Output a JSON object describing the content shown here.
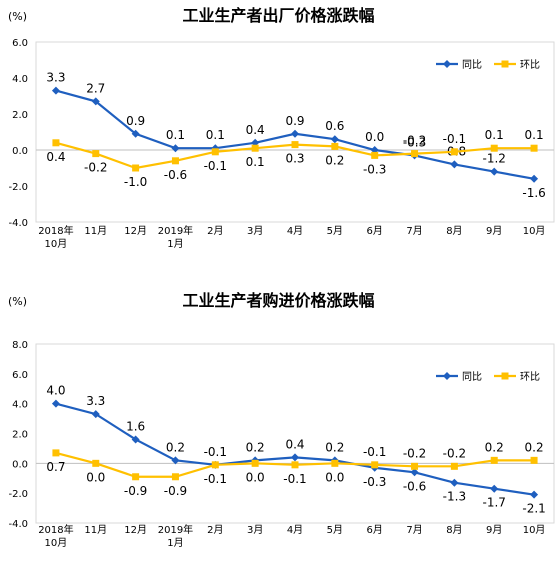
{
  "chart_data": [
    {
      "type": "line",
      "title": "工业生产者出厂价格涨跌幅",
      "ylabel": "(%)",
      "ylim": [
        -4.0,
        6.0
      ],
      "yticks": [
        "6.0",
        "4.0",
        "2.0",
        "0.0",
        "-2.0",
        "-4.0"
      ],
      "ytick_values": [
        6,
        4,
        2,
        0,
        -2,
        -4
      ],
      "categories": [
        [
          "2018年",
          "10月"
        ],
        [
          "11月"
        ],
        [
          "12月"
        ],
        [
          "2019年",
          "1月"
        ],
        [
          "2月"
        ],
        [
          "3月"
        ],
        [
          "4月"
        ],
        [
          "5月"
        ],
        [
          "6月"
        ],
        [
          "7月"
        ],
        [
          "8月"
        ],
        [
          "9月"
        ],
        [
          "10月"
        ]
      ],
      "legend": "top-right",
      "grid": false,
      "series": [
        {
          "name": "同比",
          "color": "#1F5FBF",
          "marker": "diamond",
          "values": [
            3.3,
            2.7,
            0.9,
            0.1,
            0.1,
            0.4,
            0.9,
            0.6,
            0.0,
            -0.3,
            -0.8,
            -1.2,
            -1.6
          ],
          "labels": [
            "3.3",
            "2.7",
            "0.9",
            "0.1",
            "0.1",
            "0.4",
            "0.9",
            "0.6",
            "0.0",
            "-0.3",
            "-0.8",
            "-1.2",
            "-1.6"
          ]
        },
        {
          "name": "环比",
          "color": "#FFC000",
          "marker": "square",
          "values": [
            0.4,
            -0.2,
            -1.0,
            -0.6,
            -0.1,
            0.1,
            0.3,
            0.2,
            -0.3,
            -0.2,
            -0.1,
            0.1,
            0.1
          ],
          "labels": [
            "0.4",
            "-0.2",
            "-1.0",
            "-0.6",
            "-0.1",
            "0.1",
            "0.3",
            "0.2",
            "-0.3",
            "-0.2",
            "-0.1",
            "0.1",
            "0.1"
          ]
        }
      ]
    },
    {
      "type": "line",
      "title": "工业生产者购进价格涨跌幅",
      "ylabel": "(%)",
      "ylim": [
        -4.0,
        8.0
      ],
      "yticks": [
        "8.0",
        "6.0",
        "4.0",
        "2.0",
        "0.0",
        "-2.0",
        "-4.0"
      ],
      "ytick_values": [
        8,
        6,
        4,
        2,
        0,
        -2,
        -4
      ],
      "categories": [
        [
          "2018年",
          "10月"
        ],
        [
          "11月"
        ],
        [
          "12月"
        ],
        [
          "2019年",
          "1月"
        ],
        [
          "2月"
        ],
        [
          "3月"
        ],
        [
          "4月"
        ],
        [
          "5月"
        ],
        [
          "6月"
        ],
        [
          "7月"
        ],
        [
          "8月"
        ],
        [
          "9月"
        ],
        [
          "10月"
        ]
      ],
      "legend": "top-right",
      "grid": false,
      "series": [
        {
          "name": "同比",
          "color": "#1F5FBF",
          "marker": "diamond",
          "values": [
            4.0,
            3.3,
            1.6,
            0.2,
            -0.1,
            0.2,
            0.4,
            0.2,
            -0.3,
            -0.6,
            -1.3,
            -1.7,
            -2.1
          ],
          "labels": [
            "4.0",
            "3.3",
            "1.6",
            "0.2",
            "-0.1",
            "0.2",
            "0.4",
            "0.2",
            "-0.3",
            "-0.6",
            "-1.3",
            "-1.7",
            "-2.1"
          ]
        },
        {
          "name": "环比",
          "color": "#FFC000",
          "marker": "square",
          "values": [
            0.7,
            0.0,
            -0.9,
            -0.9,
            -0.1,
            0.0,
            -0.1,
            0.0,
            -0.1,
            -0.2,
            -0.2,
            0.2,
            0.2
          ],
          "labels": [
            "0.7",
            "0.0",
            "-0.9",
            "-0.9",
            "-0.1",
            "0.0",
            "-0.1",
            "0.0",
            "-0.1",
            "-0.2",
            "-0.2",
            "0.2",
            "0.2"
          ]
        }
      ]
    }
  ]
}
